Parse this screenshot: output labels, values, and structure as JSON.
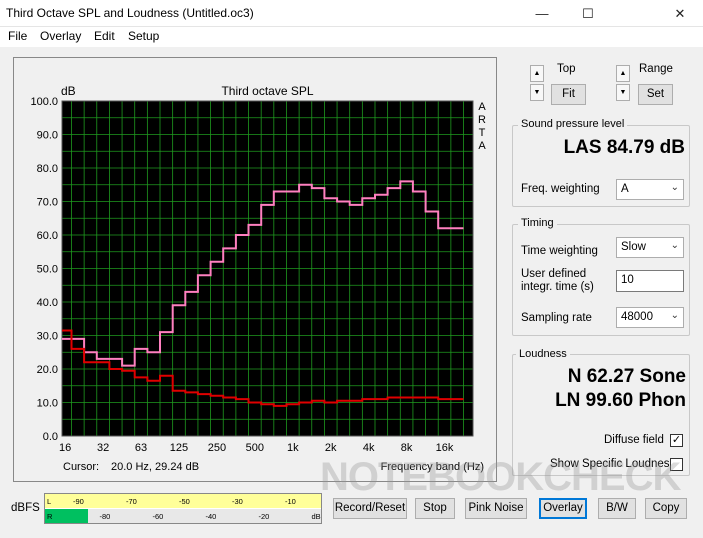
{
  "window": {
    "title": "Third Octave SPL and Loudness (Untitled.oc3)",
    "minimize_glyph": "—",
    "maximize_glyph": "☐",
    "close_glyph": "✕"
  },
  "menu": {
    "file": "File",
    "overlay": "Overlay",
    "edit": "Edit",
    "setup": "Setup"
  },
  "plot": {
    "unit_label": "dB",
    "brand_letters": [
      "A",
      "R",
      "T",
      "A"
    ],
    "cursor_label": "Cursor:",
    "cursor_value": "20.0 Hz, 29.24 dB"
  },
  "chart_data": {
    "type": "line",
    "title": "Third octave SPL",
    "xlabel": "Frequency band (Hz)",
    "ylabel": "dB",
    "ylim": [
      0,
      100
    ],
    "y_ticks": [
      "0.0",
      "10.0",
      "20.0",
      "30.0",
      "40.0",
      "50.0",
      "60.0",
      "70.0",
      "80.0",
      "90.0",
      "100.0"
    ],
    "x_tick_labels": [
      "16",
      "32",
      "63",
      "125",
      "250",
      "500",
      "1k",
      "2k",
      "4k",
      "8k",
      "16k"
    ],
    "grid": true,
    "background": "#000000",
    "grid_color": "#1f9a1f",
    "series": [
      {
        "color": "#ff80c0",
        "values": [
          29,
          29,
          25,
          23,
          23,
          21,
          26,
          25,
          31,
          39,
          43,
          48,
          52,
          56,
          60,
          63,
          69,
          73,
          73,
          75,
          74,
          71,
          70,
          69,
          71,
          72,
          74,
          76,
          73,
          67,
          62,
          62
        ]
      },
      {
        "color": "#e00000",
        "values": [
          31.5,
          26,
          22,
          22,
          20,
          19.5,
          17.5,
          16.5,
          18,
          13.5,
          13,
          12.5,
          12,
          11.5,
          11,
          10,
          9.5,
          9,
          9.5,
          10,
          10.5,
          10,
          10.5,
          10.5,
          11,
          11,
          11.5,
          11.5,
          11.5,
          11.5,
          11,
          11
        ]
      }
    ]
  },
  "sidebar": {
    "top_label": "Top",
    "range_label": "Range",
    "fit_label": "Fit",
    "set_label": "Set",
    "spl": {
      "title": "Sound pressure level",
      "value": "LAS 84.79 dB",
      "freq_weighting_label": "Freq. weighting",
      "freq_weighting_value": "A"
    },
    "timing": {
      "title": "Timing",
      "time_weighting_label": "Time weighting",
      "time_weighting_value": "Slow",
      "user_time_label_1": "User defined",
      "user_time_label_2": "integr. time (s)",
      "user_time_value": "10",
      "sampling_rate_label": "Sampling rate",
      "sampling_rate_value": "48000"
    },
    "loudness": {
      "title": "Loudness",
      "sone": "N 62.27 Sone",
      "phon": "LN 99.60 Phon",
      "diffuse_field_label": "Diffuse field",
      "diffuse_field_checked": true,
      "show_specific_label": "Show Specific Loudness",
      "show_specific_checked": false
    }
  },
  "meter": {
    "label": "dBFS",
    "left_channel": "L",
    "right_channel": "R",
    "ticks": [
      "-90",
      "-80",
      "-70",
      "-60",
      "-50",
      "-40",
      "-30",
      "-20",
      "-10",
      "dB"
    ],
    "left_level_fraction": 0.0,
    "right_level_fraction": 0.155
  },
  "buttons": {
    "record_reset": "Record/Reset",
    "stop": "Stop",
    "pink_noise": "Pink Noise",
    "overlay": "Overlay",
    "bw": "B/W",
    "copy": "Copy"
  },
  "watermark": "NOTEBOOKCHECK"
}
